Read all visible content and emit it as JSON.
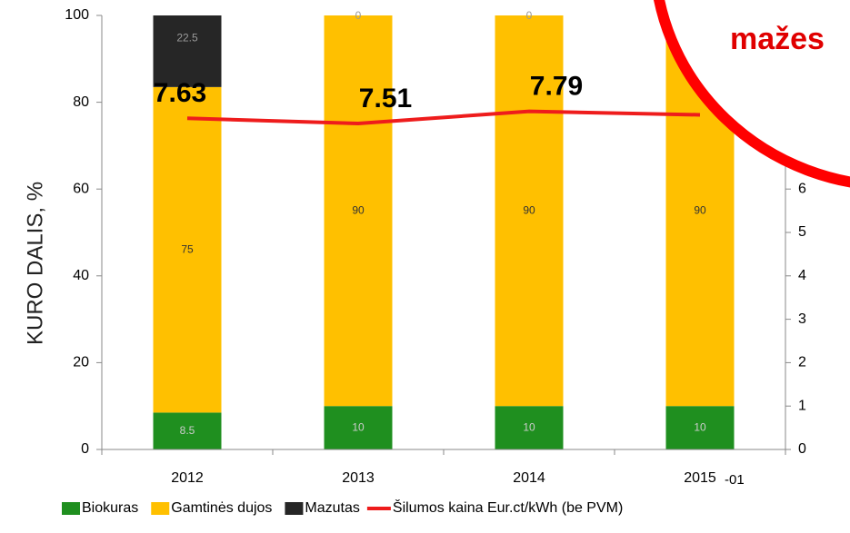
{
  "chart_data": {
    "type": "stacked-bar-line",
    "y_label": "KURO DALIS, %",
    "categories": [
      "2012",
      "2013",
      "2014",
      "2015"
    ],
    "annotations": [
      "-01",
      "mažes"
    ],
    "series": [
      {
        "name": "Biokuras",
        "color": "#1f8f1f",
        "values": [
          8.5,
          10,
          10,
          10
        ]
      },
      {
        "name": "Gamtinės dujos",
        "color": "#ffc000",
        "values": [
          75,
          90,
          90,
          90
        ]
      },
      {
        "name": "Mazutas",
        "color": "#262626",
        "values": [
          22.5,
          0,
          0,
          0
        ]
      },
      {
        "name": "Šilumos kaina Eur.ct/kWh (be PVM)",
        "color": "#ee1c1c",
        "axis": "y2",
        "values": [
          7.63,
          7.51,
          7.79,
          7.71
        ],
        "value_labels": [
          "7.63",
          "7.51",
          "7.79",
          null
        ]
      }
    ],
    "ylim": [
      0,
      100
    ],
    "yticks": [
      0,
      20,
      40,
      60,
      80,
      100
    ],
    "y2lim": [
      0,
      10
    ],
    "y2ticks": [
      0,
      1,
      2,
      3,
      4,
      5,
      6
    ]
  }
}
